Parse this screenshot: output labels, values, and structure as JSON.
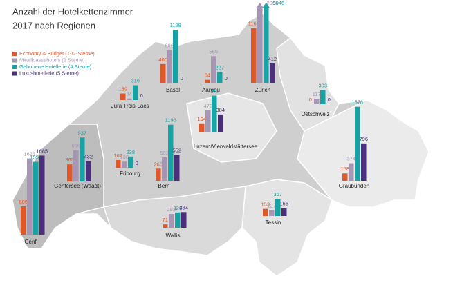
{
  "chart_data": {
    "type": "bar",
    "title": [
      "Anzahl der Hotelkettenzimmer",
      "2017 nach Regionen"
    ],
    "categories": [
      "Basel",
      "Aargau",
      "Zürich",
      "Jura Trois-Lacs",
      "Ostschweiz",
      "Luzern/Vierwaldstättersee",
      "Genf",
      "Genfersee (Waadt)",
      "Fribourg",
      "Bern",
      "Graubünden",
      "Wallis",
      "Tessin"
    ],
    "series": [
      {
        "name": "Economy & Budget (1-/2-Sterne)",
        "color": "#e0572a",
        "values": [
          400,
          64,
          1167,
          139,
          0,
          194,
          605,
          365,
          162,
          260,
          158,
          71,
          153
        ]
      },
      {
        "name": "Mittelklassehotels (3 Sterne)",
        "color": "#a696b4",
        "values": [
          696,
          569,
          2006,
          34,
          117,
          470,
          1623,
          666,
          130,
          502,
          374,
          293,
          127
        ]
      },
      {
        "name": "Gehobene Hotellerie (4 Sterne)",
        "color": "#17a3a3",
        "values": [
          1129,
          227,
          5046,
          316,
          303,
          785,
          1550,
          937,
          238,
          1196,
          1578,
          326,
          367
        ]
      },
      {
        "name": "Luxushotellerie (5 Sterne)",
        "color": "#4b2f7a",
        "values": [
          0,
          0,
          412,
          0,
          0,
          384,
          1685,
          432,
          0,
          552,
          796,
          334,
          166
        ]
      }
    ]
  }
}
